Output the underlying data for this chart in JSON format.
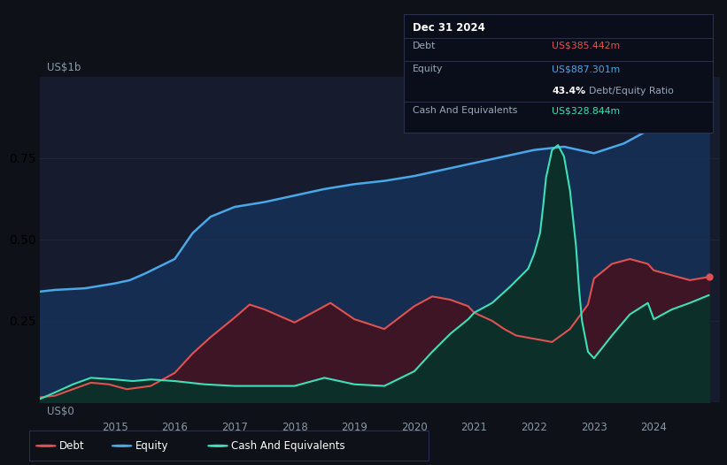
{
  "bg_color": "#0e1117",
  "plot_area_color": "#161c2d",
  "tooltip": {
    "date": "Dec 31 2024",
    "debt_label": "Debt",
    "debt_value": "US$385.442m",
    "equity_label": "Equity",
    "equity_value": "US$887.301m",
    "ratio_value": "43.4%",
    "ratio_label": "Debt/Equity Ratio",
    "cash_label": "Cash And Equivalents",
    "cash_value": "US$328.844m"
  },
  "y_label_top": "US$1b",
  "y_label_bottom": "US$0",
  "x_ticks": [
    "2015",
    "2016",
    "2017",
    "2018",
    "2019",
    "2020",
    "2021",
    "2022",
    "2023",
    "2024"
  ],
  "x_tick_pos": [
    2015,
    2016,
    2017,
    2018,
    2019,
    2020,
    2021,
    2022,
    2023,
    2024
  ],
  "colors": {
    "debt": "#e05252",
    "equity": "#4aa8e8",
    "cash": "#3de0b8",
    "equity_fill": "#162d52",
    "debt_fill": "#3d1525",
    "cash_fill": "#0d2f2a",
    "grid": "#252d45",
    "tooltip_bg": "#0a0e1a",
    "tooltip_border": "#2a3050",
    "legend_bg": "#0e1117",
    "legend_border": "#2a3050"
  },
  "legend": [
    {
      "label": "Debt",
      "color": "#e05252"
    },
    {
      "label": "Equity",
      "color": "#4aa8e8"
    },
    {
      "label": "Cash And Equivalents",
      "color": "#3de0b8"
    }
  ],
  "equity_data": {
    "x": [
      2013.75,
      2014.0,
      2014.5,
      2015.0,
      2015.25,
      2015.5,
      2016.0,
      2016.3,
      2016.6,
      2017.0,
      2017.5,
      2018.0,
      2018.5,
      2019.0,
      2019.5,
      2020.0,
      2020.5,
      2021.0,
      2021.5,
      2022.0,
      2022.5,
      2023.0,
      2023.5,
      2024.0,
      2024.5,
      2024.92
    ],
    "y": [
      0.34,
      0.345,
      0.35,
      0.365,
      0.375,
      0.395,
      0.44,
      0.52,
      0.57,
      0.6,
      0.615,
      0.635,
      0.655,
      0.67,
      0.68,
      0.695,
      0.715,
      0.735,
      0.755,
      0.775,
      0.785,
      0.765,
      0.795,
      0.845,
      0.875,
      0.89
    ]
  },
  "debt_data": {
    "x": [
      2013.75,
      2014.0,
      2014.3,
      2014.6,
      2014.9,
      2015.2,
      2015.6,
      2016.0,
      2016.3,
      2016.6,
      2017.0,
      2017.25,
      2017.5,
      2017.75,
      2018.0,
      2018.3,
      2018.6,
      2019.0,
      2019.5,
      2020.0,
      2020.3,
      2020.6,
      2020.9,
      2021.0,
      2021.3,
      2021.5,
      2021.7,
      2022.0,
      2022.3,
      2022.6,
      2022.9,
      2023.0,
      2023.3,
      2023.6,
      2023.9,
      2024.0,
      2024.3,
      2024.6,
      2024.92
    ],
    "y": [
      0.015,
      0.02,
      0.04,
      0.06,
      0.055,
      0.04,
      0.05,
      0.09,
      0.15,
      0.2,
      0.26,
      0.3,
      0.285,
      0.265,
      0.245,
      0.275,
      0.305,
      0.255,
      0.225,
      0.295,
      0.325,
      0.315,
      0.295,
      0.275,
      0.25,
      0.225,
      0.205,
      0.195,
      0.185,
      0.225,
      0.3,
      0.38,
      0.425,
      0.44,
      0.425,
      0.405,
      0.39,
      0.375,
      0.385
    ]
  },
  "cash_data": {
    "x": [
      2013.75,
      2014.0,
      2014.3,
      2014.6,
      2015.0,
      2015.3,
      2015.6,
      2016.0,
      2016.5,
      2017.0,
      2017.5,
      2018.0,
      2018.5,
      2019.0,
      2019.5,
      2020.0,
      2020.3,
      2020.6,
      2020.9,
      2021.0,
      2021.3,
      2021.6,
      2021.9,
      2022.0,
      2022.1,
      2022.15,
      2022.2,
      2022.3,
      2022.4,
      2022.5,
      2022.6,
      2022.7,
      2022.75,
      2022.8,
      2022.9,
      2023.0,
      2023.3,
      2023.6,
      2023.9,
      2024.0,
      2024.3,
      2024.6,
      2024.92
    ],
    "y": [
      0.01,
      0.03,
      0.055,
      0.075,
      0.07,
      0.065,
      0.07,
      0.065,
      0.055,
      0.05,
      0.05,
      0.05,
      0.075,
      0.055,
      0.05,
      0.095,
      0.155,
      0.21,
      0.255,
      0.275,
      0.305,
      0.355,
      0.41,
      0.455,
      0.52,
      0.6,
      0.69,
      0.775,
      0.79,
      0.755,
      0.65,
      0.48,
      0.35,
      0.25,
      0.155,
      0.135,
      0.205,
      0.27,
      0.305,
      0.255,
      0.285,
      0.305,
      0.329
    ]
  },
  "xlim": [
    2013.75,
    2025.1
  ],
  "ylim": [
    0.0,
    1.0
  ]
}
